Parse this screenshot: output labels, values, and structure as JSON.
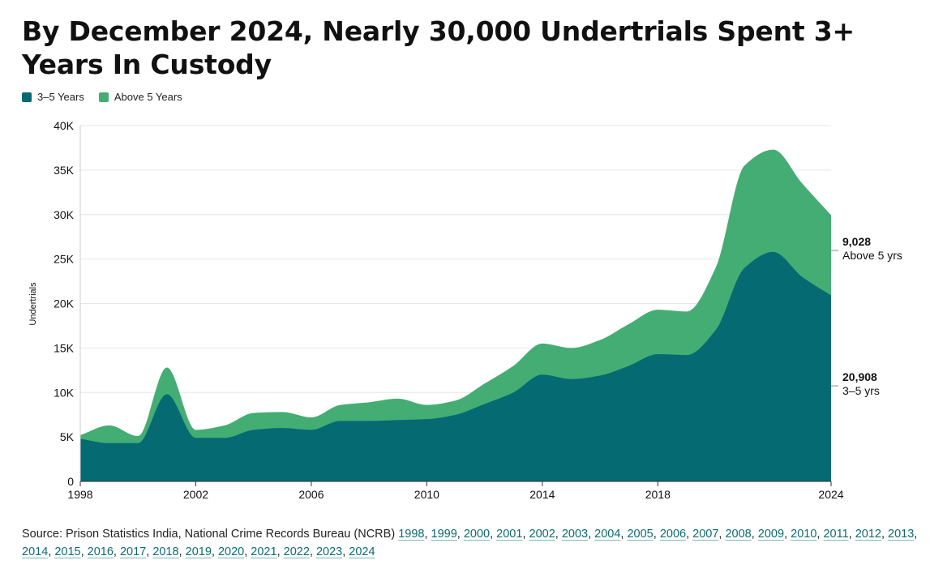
{
  "title": "By December 2024, Nearly 30,000 Undertrials Spent 3+ Years In Custody",
  "colors": {
    "series_3_5": "#066a73",
    "series_5plus": "#44ad73",
    "grid": "#e6e6e6",
    "axis": "#333333",
    "link": "#0a6b73"
  },
  "legend": [
    {
      "label": "3–5 Years",
      "color": "#066a73"
    },
    {
      "label": "Above 5 Years",
      "color": "#44ad73"
    }
  ],
  "chart_data": {
    "type": "area",
    "stacked": true,
    "title": "By December 2024, Nearly 30,000 Undertrials Spent 3+ Years In Custody",
    "ylabel": "Undertrials",
    "xlabel": "",
    "x": [
      1998,
      1999,
      2000,
      2001,
      2002,
      2003,
      2004,
      2005,
      2006,
      2007,
      2008,
      2009,
      2010,
      2011,
      2012,
      2013,
      2014,
      2015,
      2016,
      2017,
      2018,
      2019,
      2020,
      2021,
      2022,
      2023,
      2024
    ],
    "xlim": [
      1998,
      2024
    ],
    "ylim": [
      0,
      40000
    ],
    "x_ticks": [
      1998,
      2002,
      2006,
      2010,
      2014,
      2018,
      2024
    ],
    "y_ticks": [
      0,
      5000,
      10000,
      15000,
      20000,
      25000,
      30000,
      35000,
      40000
    ],
    "y_tick_labels": [
      "0",
      "5K",
      "10K",
      "15K",
      "20K",
      "25K",
      "30K",
      "35K",
      "40K"
    ],
    "grid": true,
    "legend_position": "top-left",
    "series": [
      {
        "name": "3–5 Years",
        "color": "#066a73",
        "values": [
          4800,
          4300,
          4300,
          9800,
          4900,
          4900,
          5800,
          6000,
          5800,
          6800,
          6800,
          6900,
          7000,
          7500,
          8700,
          10000,
          12000,
          11500,
          11900,
          13000,
          14300,
          14200,
          17000,
          24000,
          25800,
          23000,
          20908
        ]
      },
      {
        "name": "Above 5 Years",
        "color": "#44ad73",
        "values": [
          400,
          2000,
          800,
          3000,
          900,
          1400,
          1900,
          1800,
          1400,
          1800,
          2100,
          2400,
          1600,
          1600,
          2300,
          3000,
          3500,
          3500,
          4000,
          4700,
          5000,
          4900,
          7000,
          11500,
          11500,
          10500,
          9028
        ]
      }
    ],
    "annotations": [
      {
        "value": "9,028",
        "label": "Above 5 yrs",
        "series": "Above 5 Years"
      },
      {
        "value": "20,908",
        "label": "3–5 yrs",
        "series": "3–5 Years"
      }
    ]
  },
  "source": {
    "prefix": "Source: Prison Statistics India, National Crime Records Bureau (NCRB)",
    "links": [
      "1998",
      "1999",
      "2000",
      "2001",
      "2002",
      "2003",
      "2004",
      "2005",
      "2006",
      "2007",
      "2008",
      "2009",
      "2010",
      "2011",
      "2012",
      "2013",
      "2014",
      "2015",
      "2016",
      "2017",
      "2018",
      "2019",
      "2020",
      "2021",
      "2022",
      "2023",
      "2024"
    ]
  }
}
